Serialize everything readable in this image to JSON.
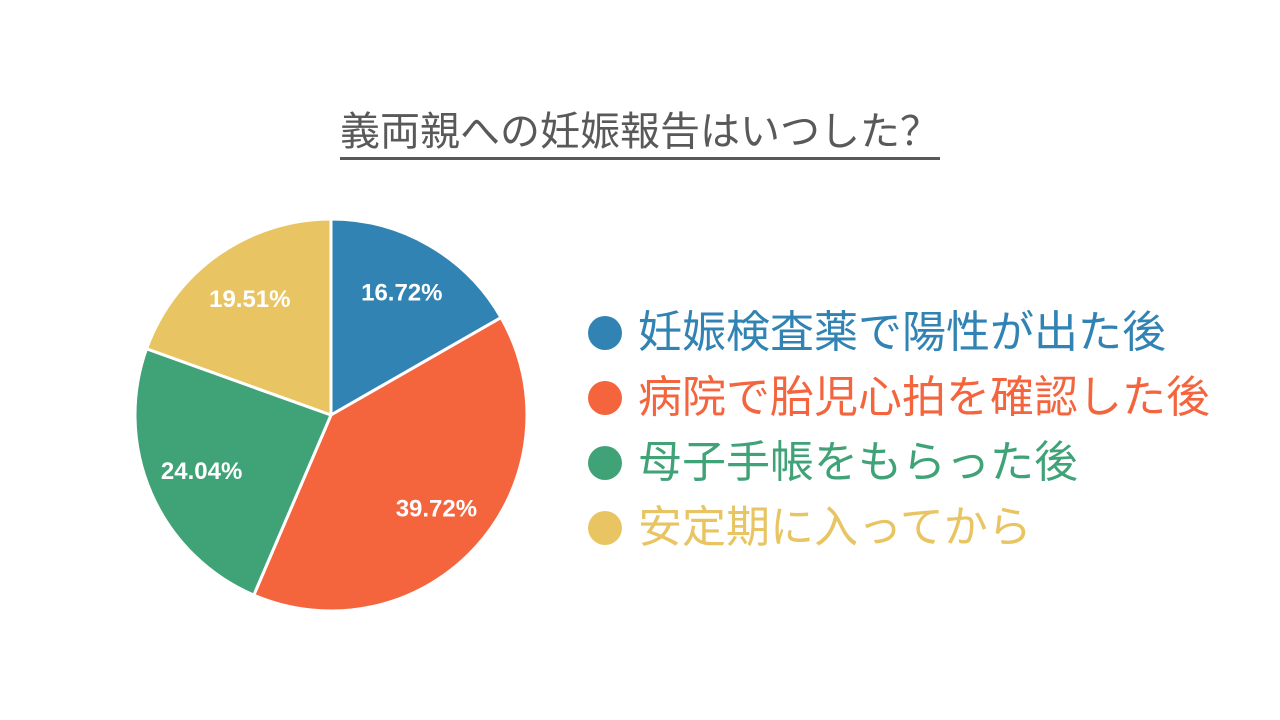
{
  "title": {
    "text": "義両親への妊娠報告はいつした？",
    "color": "#595959"
  },
  "chart_data": {
    "type": "pie",
    "categories": [
      "妊娠検査薬で陽性が出た後",
      "病院で胎児心拍を確認した後",
      "母子手帳をもらった後",
      "安定期に入ってから"
    ],
    "values": [
      16.72,
      39.72,
      24.04,
      19.51
    ],
    "value_unit": "%",
    "slice_labels": [
      "16.72%",
      "39.72%",
      "24.04%",
      "19.51%"
    ],
    "colors": [
      "#3083B3",
      "#F4653E",
      "#40A277",
      "#E8C562"
    ],
    "slice_label_color": "#FFFFFF",
    "separator_color": "#FFFFFF",
    "start_angle": "top",
    "direction": "clockwise",
    "legend_position": "right",
    "title": "義両親への妊娠報告はいつした？"
  }
}
